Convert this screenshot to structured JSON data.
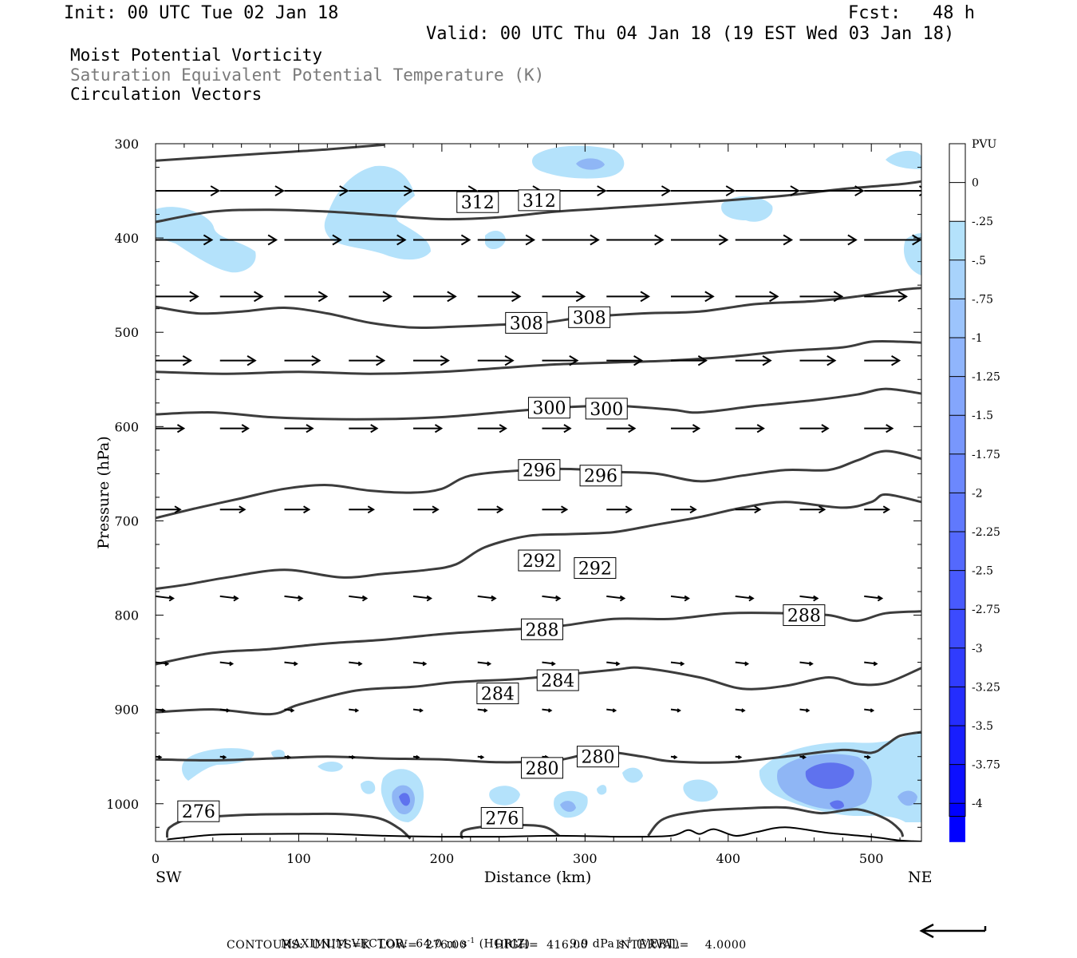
{
  "header": {
    "init": "Init: 00 UTC Tue 02 Jan 18",
    "fcst": "Fcst:   48 h",
    "valid": "Valid: 00 UTC Thu 04 Jan 18 (19 EST Wed 03 Jan 18)",
    "field1": "Moist Potential Vorticity",
    "field2": "Saturation Equivalent Potential Temperature (K)",
    "field3": "Circulation Vectors"
  },
  "footer": {
    "max_vector_label": "MAXIMUM VECTOR:",
    "horiz_value": "64.0 m s",
    "horiz_unit": "(HORIZ)",
    "vert_value": "9.9 dPa s",
    "vert_unit": "(VERT)",
    "contours": "CONTOURS:  UNITS=K  LOW=  276.00       HIGH=  416.00       INTERVAL=    4.0000"
  },
  "colors": {
    "shade_light": "#b4e2fb",
    "shade_mid": "#8fb6f5",
    "shade_dark": "#5f72ee",
    "contour": "#3c3c3c",
    "vector": "#000000"
  },
  "chart_data": {
    "type": "cross-section",
    "xlabel": "Distance (km)",
    "ylabel": "Pressure (hPa)",
    "xlim": [
      0,
      535
    ],
    "ylim": [
      1040,
      300
    ],
    "x_ticks": [
      0,
      100,
      200,
      300,
      400,
      500
    ],
    "y_ticks": [
      300,
      400,
      500,
      600,
      700,
      800,
      900,
      1000
    ],
    "x_end_left": "SW",
    "x_end_right": "NE",
    "colorbar": {
      "title": "PVU",
      "labels": [
        "0",
        "-.25",
        "-.5",
        "-.75",
        "-1",
        "-1.25",
        "-1.5",
        "-1.75",
        "-2",
        "-2.25",
        "-2.5",
        "-2.75",
        "-3",
        "-3.25",
        "-3.5",
        "-3.75",
        "-4"
      ]
    },
    "contours": [
      {
        "level": 312,
        "labels": [
          {
            "x": 225,
            "p": 362
          },
          {
            "x": 268,
            "p": 360
          }
        ],
        "points": [
          [
            0,
            383
          ],
          [
            40,
            372
          ],
          [
            80,
            370
          ],
          [
            120,
            372
          ],
          [
            160,
            376
          ],
          [
            200,
            380
          ],
          [
            240,
            378
          ],
          [
            280,
            372
          ],
          [
            320,
            368
          ],
          [
            360,
            364
          ],
          [
            400,
            360
          ],
          [
            440,
            355
          ],
          [
            480,
            348
          ],
          [
            520,
            343
          ],
          [
            535,
            340
          ]
        ]
      },
      {
        "level": 316,
        "labels": [],
        "points": [
          [
            0,
            318
          ],
          [
            40,
            314
          ],
          [
            80,
            310
          ],
          [
            120,
            306
          ],
          [
            160,
            301
          ]
        ]
      },
      {
        "level": 308,
        "labels": [
          {
            "x": 259,
            "p": 490
          },
          {
            "x": 303,
            "p": 484
          }
        ],
        "points": [
          [
            0,
            473
          ],
          [
            30,
            480
          ],
          [
            60,
            478
          ],
          [
            90,
            474
          ],
          [
            120,
            480
          ],
          [
            150,
            490
          ],
          [
            180,
            495
          ],
          [
            210,
            494
          ],
          [
            240,
            492
          ],
          [
            270,
            490
          ],
          [
            300,
            484
          ],
          [
            340,
            480
          ],
          [
            380,
            478
          ],
          [
            420,
            470
          ],
          [
            460,
            467
          ],
          [
            490,
            462
          ],
          [
            520,
            455
          ],
          [
            535,
            453
          ]
        ]
      },
      {
        "level": 304,
        "labels": [],
        "points": [
          [
            0,
            542
          ],
          [
            50,
            544
          ],
          [
            100,
            542
          ],
          [
            150,
            544
          ],
          [
            200,
            542
          ],
          [
            240,
            538
          ],
          [
            280,
            534
          ],
          [
            320,
            532
          ],
          [
            360,
            530
          ],
          [
            400,
            526
          ],
          [
            440,
            520
          ],
          [
            480,
            516
          ],
          [
            500,
            510
          ],
          [
            520,
            510
          ],
          [
            535,
            511
          ]
        ]
      },
      {
        "level": 300,
        "labels": [
          {
            "x": 275,
            "p": 580
          },
          {
            "x": 315,
            "p": 581
          }
        ],
        "points": [
          [
            0,
            587
          ],
          [
            40,
            585
          ],
          [
            80,
            590
          ],
          [
            120,
            592
          ],
          [
            160,
            592
          ],
          [
            200,
            590
          ],
          [
            240,
            585
          ],
          [
            280,
            580
          ],
          [
            320,
            578
          ],
          [
            360,
            582
          ],
          [
            380,
            585
          ],
          [
            420,
            578
          ],
          [
            460,
            572
          ],
          [
            490,
            566
          ],
          [
            510,
            560
          ],
          [
            535,
            565
          ]
        ]
      },
      {
        "level": 296,
        "labels": [
          {
            "x": 268,
            "p": 646
          },
          {
            "x": 311,
            "p": 652
          }
        ],
        "points": [
          [
            0,
            697
          ],
          [
            30,
            686
          ],
          [
            60,
            676
          ],
          [
            90,
            666
          ],
          [
            120,
            662
          ],
          [
            150,
            668
          ],
          [
            180,
            670
          ],
          [
            200,
            666
          ],
          [
            220,
            652
          ],
          [
            260,
            646
          ],
          [
            290,
            645
          ],
          [
            320,
            648
          ],
          [
            350,
            650
          ],
          [
            380,
            658
          ],
          [
            410,
            652
          ],
          [
            440,
            646
          ],
          [
            470,
            646
          ],
          [
            490,
            636
          ],
          [
            510,
            626
          ],
          [
            535,
            634
          ]
        ]
      },
      {
        "level": 292,
        "labels": [
          {
            "x": 268,
            "p": 742
          },
          {
            "x": 307,
            "p": 750
          }
        ],
        "points": [
          [
            0,
            772
          ],
          [
            20,
            768
          ],
          [
            50,
            760
          ],
          [
            90,
            752
          ],
          [
            130,
            760
          ],
          [
            160,
            756
          ],
          [
            190,
            752
          ],
          [
            210,
            746
          ],
          [
            230,
            728
          ],
          [
            260,
            716
          ],
          [
            290,
            714
          ],
          [
            320,
            712
          ],
          [
            350,
            704
          ],
          [
            380,
            696
          ],
          [
            410,
            686
          ],
          [
            440,
            680
          ],
          [
            480,
            686
          ],
          [
            500,
            680
          ],
          [
            510,
            672
          ],
          [
            535,
            680
          ]
        ]
      },
      {
        "level": 288,
        "labels": [
          {
            "x": 270,
            "p": 815
          },
          {
            "x": 453,
            "p": 800
          }
        ],
        "points": [
          [
            0,
            852
          ],
          [
            40,
            840
          ],
          [
            80,
            836
          ],
          [
            120,
            830
          ],
          [
            160,
            826
          ],
          [
            200,
            820
          ],
          [
            240,
            816
          ],
          [
            280,
            812
          ],
          [
            320,
            804
          ],
          [
            360,
            804
          ],
          [
            400,
            798
          ],
          [
            440,
            798
          ],
          [
            470,
            800
          ],
          [
            490,
            806
          ],
          [
            510,
            798
          ],
          [
            535,
            796
          ]
        ]
      },
      {
        "level": 284,
        "labels": [
          {
            "x": 239,
            "p": 883
          },
          {
            "x": 281,
            "p": 869
          }
        ],
        "points": [
          [
            0,
            903
          ],
          [
            40,
            900
          ],
          [
            80,
            905
          ],
          [
            100,
            895
          ],
          [
            140,
            880
          ],
          [
            180,
            876
          ],
          [
            210,
            871
          ],
          [
            250,
            868
          ],
          [
            280,
            864
          ],
          [
            320,
            858
          ],
          [
            340,
            856
          ],
          [
            380,
            866
          ],
          [
            410,
            878
          ],
          [
            440,
            875
          ],
          [
            470,
            866
          ],
          [
            490,
            873
          ],
          [
            510,
            872
          ],
          [
            535,
            856
          ]
        ]
      },
      {
        "level": 280,
        "labels": [
          {
            "x": 270,
            "p": 962
          },
          {
            "x": 309,
            "p": 950
          }
        ],
        "points": [
          [
            0,
            953
          ],
          [
            40,
            954
          ],
          [
            80,
            952
          ],
          [
            120,
            950
          ],
          [
            160,
            952
          ],
          [
            200,
            953
          ],
          [
            240,
            956
          ],
          [
            280,
            954
          ],
          [
            310,
            945
          ],
          [
            340,
            950
          ],
          [
            360,
            955
          ],
          [
            400,
            956
          ],
          [
            440,
            950
          ],
          [
            480,
            943
          ],
          [
            500,
            946
          ],
          [
            510,
            938
          ],
          [
            520,
            928
          ],
          [
            535,
            924
          ]
        ]
      },
      {
        "level": 276,
        "labels": [
          {
            "x": 30,
            "p": 1008
          },
          {
            "x": 242,
            "p": 1015
          }
        ],
        "points": [
          [
            8,
            1036
          ],
          [
            10,
            1025
          ],
          [
            25,
            1016
          ],
          [
            60,
            1012
          ],
          [
            100,
            1011
          ],
          [
            130,
            1011
          ],
          [
            155,
            1015
          ],
          [
            170,
            1026
          ],
          [
            178,
            1037
          ]
        ]
      },
      {
        "level": 276,
        "labels": [],
        "points": [
          [
            214,
            1037
          ],
          [
            216,
            1028
          ],
          [
            240,
            1023
          ],
          [
            270,
            1024
          ],
          [
            282,
            1034
          ]
        ]
      },
      {
        "level": 276,
        "labels": [],
        "points": [
          [
            344,
            1034
          ],
          [
            355,
            1016
          ],
          [
            380,
            1008
          ],
          [
            410,
            1005
          ],
          [
            440,
            1004
          ],
          [
            465,
            1010
          ],
          [
            490,
            1006
          ],
          [
            510,
            1016
          ],
          [
            520,
            1028
          ],
          [
            522,
            1035
          ]
        ]
      }
    ],
    "terrain": [
      [
        8,
        1038
      ],
      [
        40,
        1033
      ],
      [
        80,
        1032
      ],
      [
        120,
        1032
      ],
      [
        160,
        1034
      ],
      [
        200,
        1035
      ],
      [
        240,
        1035
      ],
      [
        280,
        1034
      ],
      [
        330,
        1035
      ],
      [
        360,
        1034
      ],
      [
        372,
        1028
      ],
      [
        380,
        1032
      ],
      [
        390,
        1027
      ],
      [
        405,
        1034
      ],
      [
        420,
        1030
      ],
      [
        440,
        1025
      ],
      [
        470,
        1031
      ],
      [
        500,
        1035
      ],
      [
        520,
        1039
      ],
      [
        535,
        1040
      ]
    ],
    "vector_levels": [
      {
        "p": 350,
        "len": 36
      },
      {
        "p": 402,
        "len": 32
      },
      {
        "p": 462,
        "len": 24
      },
      {
        "p": 530,
        "len": 20
      },
      {
        "p": 602,
        "len": 16
      },
      {
        "p": 688,
        "len": 14
      },
      {
        "p": 780,
        "len": 10
      },
      {
        "p": 850,
        "len": 7
      },
      {
        "p": 900,
        "len": 5
      },
      {
        "p": 950,
        "len": 3
      }
    ],
    "vector_x": [
      0,
      45,
      90,
      135,
      180,
      225,
      270,
      315,
      360,
      405,
      450,
      495
    ]
  }
}
